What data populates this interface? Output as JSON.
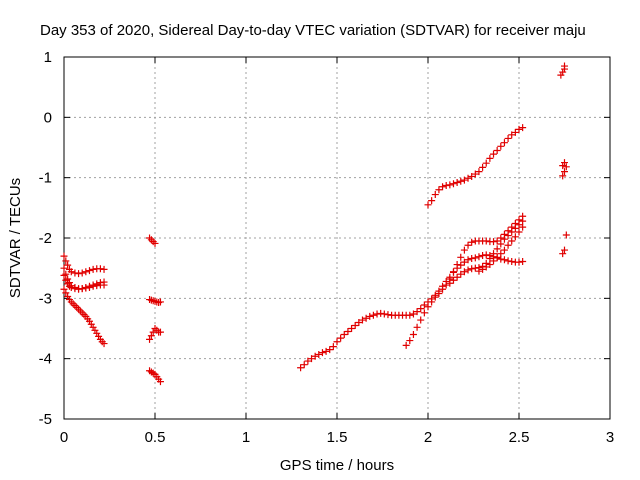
{
  "chart_data": {
    "type": "scatter",
    "title": "Day 353 of 2020, Sidereal Day-to-day VTEC variation (SDTVAR) for receiver maju",
    "xlabel": "GPS time / hours",
    "ylabel": "SDTVAR / TECUs",
    "xlim": [
      0,
      3
    ],
    "ylim": [
      -5,
      1
    ],
    "x_ticks": [
      0,
      0.5,
      1,
      1.5,
      2,
      2.5,
      3
    ],
    "x_tick_labels": [
      "0",
      "0.5",
      "1",
      "1.5",
      "2",
      "2.5",
      "3"
    ],
    "y_ticks": [
      -5,
      -4,
      -3,
      -2,
      -1,
      0,
      1
    ],
    "y_tick_labels": [
      "-5",
      "-4",
      "-3",
      "-2",
      "-1",
      "0",
      "1"
    ],
    "grid": true,
    "marker": "plus",
    "color": "#e00000",
    "series": [
      {
        "points": [
          [
            0.0,
            -2.3
          ],
          [
            0.01,
            -2.38
          ],
          [
            0.02,
            -2.45
          ],
          [
            0.03,
            -2.52
          ],
          [
            0.04,
            -2.56
          ],
          [
            0.06,
            -2.58
          ],
          [
            0.08,
            -2.59
          ],
          [
            0.1,
            -2.58
          ],
          [
            0.12,
            -2.56
          ],
          [
            0.14,
            -2.54
          ],
          [
            0.16,
            -2.52
          ],
          [
            0.18,
            -2.51
          ],
          [
            0.2,
            -2.51
          ],
          [
            0.22,
            -2.52
          ],
          [
            0.0,
            -2.5
          ],
          [
            0.01,
            -2.6
          ],
          [
            0.02,
            -2.68
          ],
          [
            0.03,
            -2.74
          ],
          [
            0.04,
            -2.79
          ],
          [
            0.06,
            -2.82
          ],
          [
            0.08,
            -2.84
          ],
          [
            0.1,
            -2.84
          ],
          [
            0.12,
            -2.83
          ],
          [
            0.14,
            -2.82
          ],
          [
            0.16,
            -2.8
          ],
          [
            0.18,
            -2.79
          ],
          [
            0.2,
            -2.78
          ],
          [
            0.22,
            -2.78
          ],
          [
            0.0,
            -2.62
          ],
          [
            0.01,
            -2.7
          ],
          [
            0.02,
            -2.76
          ],
          [
            0.03,
            -2.8
          ],
          [
            0.04,
            -2.82
          ],
          [
            0.06,
            -2.84
          ],
          [
            0.08,
            -2.85
          ],
          [
            0.1,
            -2.84
          ],
          [
            0.12,
            -2.82
          ],
          [
            0.14,
            -2.8
          ],
          [
            0.16,
            -2.78
          ],
          [
            0.18,
            -2.76
          ],
          [
            0.2,
            -2.74
          ],
          [
            0.22,
            -2.73
          ],
          [
            0.0,
            -2.85
          ],
          [
            0.01,
            -2.91
          ],
          [
            0.02,
            -2.97
          ],
          [
            0.03,
            -3.02
          ],
          [
            0.04,
            -3.06
          ],
          [
            0.05,
            -3.09
          ],
          [
            0.06,
            -3.12
          ],
          [
            0.07,
            -3.15
          ],
          [
            0.08,
            -3.18
          ],
          [
            0.09,
            -3.21
          ],
          [
            0.1,
            -3.24
          ],
          [
            0.11,
            -3.27
          ],
          [
            0.12,
            -3.3
          ],
          [
            0.13,
            -3.34
          ],
          [
            0.14,
            -3.38
          ],
          [
            0.15,
            -3.43
          ],
          [
            0.16,
            -3.48
          ],
          [
            0.17,
            -3.53
          ],
          [
            0.18,
            -3.58
          ],
          [
            0.19,
            -3.63
          ],
          [
            0.2,
            -3.68
          ],
          [
            0.21,
            -3.72
          ],
          [
            0.22,
            -3.75
          ],
          [
            0.47,
            -2.0
          ],
          [
            0.48,
            -2.03
          ],
          [
            0.49,
            -2.06
          ],
          [
            0.5,
            -2.09
          ],
          [
            0.47,
            -3.68
          ],
          [
            0.48,
            -3.62
          ],
          [
            0.49,
            -3.56
          ],
          [
            0.5,
            -3.5
          ],
          [
            0.51,
            -3.53
          ],
          [
            0.52,
            -3.56
          ],
          [
            0.53,
            -3.56
          ],
          [
            0.47,
            -3.02
          ],
          [
            0.48,
            -3.03
          ],
          [
            0.49,
            -3.04
          ],
          [
            0.5,
            -3.05
          ],
          [
            0.51,
            -3.06
          ],
          [
            0.52,
            -3.07
          ],
          [
            0.53,
            -3.06
          ],
          [
            0.47,
            -4.2
          ],
          [
            0.48,
            -4.22
          ],
          [
            0.49,
            -4.24
          ],
          [
            0.5,
            -4.26
          ],
          [
            0.51,
            -4.3
          ],
          [
            0.52,
            -4.34
          ],
          [
            0.53,
            -4.38
          ],
          [
            1.3,
            -4.15
          ],
          [
            1.32,
            -4.1
          ],
          [
            1.34,
            -4.04
          ],
          [
            1.36,
            -4.0
          ],
          [
            1.38,
            -3.96
          ],
          [
            1.4,
            -3.93
          ],
          [
            1.42,
            -3.9
          ],
          [
            1.44,
            -3.88
          ],
          [
            1.46,
            -3.85
          ],
          [
            1.48,
            -3.8
          ],
          [
            1.5,
            -3.72
          ],
          [
            1.52,
            -3.66
          ],
          [
            1.54,
            -3.6
          ],
          [
            1.56,
            -3.55
          ],
          [
            1.58,
            -3.5
          ],
          [
            1.6,
            -3.45
          ],
          [
            1.62,
            -3.4
          ],
          [
            1.64,
            -3.36
          ],
          [
            1.66,
            -3.33
          ],
          [
            1.68,
            -3.3
          ],
          [
            1.7,
            -3.28
          ],
          [
            1.72,
            -3.26
          ],
          [
            1.74,
            -3.25
          ],
          [
            1.76,
            -3.26
          ],
          [
            1.78,
            -3.27
          ],
          [
            1.8,
            -3.28
          ],
          [
            1.82,
            -3.28
          ],
          [
            1.84,
            -3.28
          ],
          [
            1.86,
            -3.28
          ],
          [
            1.88,
            -3.28
          ],
          [
            1.9,
            -3.28
          ],
          [
            1.92,
            -3.26
          ],
          [
            1.94,
            -3.22
          ],
          [
            1.96,
            -3.17
          ],
          [
            1.98,
            -3.11
          ],
          [
            2.0,
            -3.06
          ],
          [
            2.02,
            -3.01
          ],
          [
            2.04,
            -2.95
          ],
          [
            2.06,
            -2.88
          ],
          [
            2.08,
            -2.8
          ],
          [
            2.1,
            -2.72
          ],
          [
            2.12,
            -2.65
          ],
          [
            2.14,
            -2.57
          ],
          [
            2.16,
            -2.5
          ],
          [
            2.18,
            -2.45
          ],
          [
            2.2,
            -2.4
          ],
          [
            2.22,
            -2.36
          ],
          [
            2.24,
            -2.34
          ],
          [
            2.26,
            -2.33
          ],
          [
            2.28,
            -2.31
          ],
          [
            2.3,
            -2.29
          ],
          [
            2.32,
            -2.28
          ],
          [
            2.34,
            -2.29
          ],
          [
            2.36,
            -2.31
          ],
          [
            2.38,
            -2.33
          ],
          [
            2.4,
            -2.35
          ],
          [
            2.42,
            -2.36
          ],
          [
            2.44,
            -2.38
          ],
          [
            2.46,
            -2.39
          ],
          [
            2.48,
            -2.4
          ],
          [
            2.5,
            -2.4
          ],
          [
            2.52,
            -2.39
          ],
          [
            1.88,
            -3.78
          ],
          [
            1.9,
            -3.7
          ],
          [
            1.92,
            -3.6
          ],
          [
            1.94,
            -3.48
          ],
          [
            1.96,
            -3.36
          ],
          [
            1.98,
            -3.24
          ],
          [
            2.0,
            -3.14
          ],
          [
            2.02,
            -3.06
          ],
          [
            2.04,
            -2.98
          ],
          [
            2.06,
            -2.92
          ],
          [
            2.08,
            -2.85
          ],
          [
            2.1,
            -2.78
          ],
          [
            2.12,
            -2.68
          ],
          [
            2.14,
            -2.56
          ],
          [
            2.16,
            -2.44
          ],
          [
            2.18,
            -2.32
          ],
          [
            2.2,
            -2.2
          ],
          [
            2.22,
            -2.12
          ],
          [
            2.24,
            -2.07
          ],
          [
            2.26,
            -2.05
          ],
          [
            2.28,
            -2.05
          ],
          [
            2.3,
            -2.05
          ],
          [
            2.32,
            -2.05
          ],
          [
            2.34,
            -2.06
          ],
          [
            2.36,
            -2.06
          ],
          [
            2.38,
            -2.05
          ],
          [
            2.4,
            -2.0
          ],
          [
            2.42,
            -1.94
          ],
          [
            2.44,
            -1.88
          ],
          [
            2.46,
            -1.82
          ],
          [
            2.48,
            -1.76
          ],
          [
            2.5,
            -1.7
          ],
          [
            2.52,
            -1.64
          ],
          [
            2.12,
            -2.75
          ],
          [
            2.14,
            -2.7
          ],
          [
            2.16,
            -2.65
          ],
          [
            2.18,
            -2.6
          ],
          [
            2.2,
            -2.56
          ],
          [
            2.22,
            -2.53
          ],
          [
            2.24,
            -2.51
          ],
          [
            2.26,
            -2.5
          ],
          [
            2.28,
            -2.49
          ],
          [
            2.3,
            -2.47
          ],
          [
            2.32,
            -2.42
          ],
          [
            2.34,
            -2.34
          ],
          [
            2.36,
            -2.26
          ],
          [
            2.38,
            -2.18
          ],
          [
            2.4,
            -2.1
          ],
          [
            2.42,
            -2.02
          ],
          [
            2.44,
            -1.96
          ],
          [
            2.46,
            -1.9
          ],
          [
            2.48,
            -1.84
          ],
          [
            2.5,
            -1.78
          ],
          [
            2.52,
            -1.72
          ],
          [
            2.28,
            -2.55
          ],
          [
            2.3,
            -2.52
          ],
          [
            2.32,
            -2.48
          ],
          [
            2.34,
            -2.44
          ],
          [
            2.36,
            -2.38
          ],
          [
            2.38,
            -2.32
          ],
          [
            2.4,
            -2.26
          ],
          [
            2.42,
            -2.2
          ],
          [
            2.44,
            -2.12
          ],
          [
            2.46,
            -2.05
          ],
          [
            2.48,
            -1.98
          ],
          [
            2.5,
            -1.9
          ],
          [
            2.52,
            -1.82
          ],
          [
            2.0,
            -1.45
          ],
          [
            2.02,
            -1.38
          ],
          [
            2.04,
            -1.28
          ],
          [
            2.06,
            -1.2
          ],
          [
            2.08,
            -1.15
          ],
          [
            2.1,
            -1.13
          ],
          [
            2.12,
            -1.12
          ],
          [
            2.14,
            -1.1
          ],
          [
            2.16,
            -1.08
          ],
          [
            2.18,
            -1.06
          ],
          [
            2.2,
            -1.04
          ],
          [
            2.22,
            -1.01
          ],
          [
            2.24,
            -0.98
          ],
          [
            2.26,
            -0.94
          ],
          [
            2.28,
            -0.9
          ],
          [
            2.3,
            -0.83
          ],
          [
            2.32,
            -0.76
          ],
          [
            2.34,
            -0.68
          ],
          [
            2.36,
            -0.61
          ],
          [
            2.38,
            -0.55
          ],
          [
            2.4,
            -0.48
          ],
          [
            2.42,
            -0.42
          ],
          [
            2.44,
            -0.35
          ],
          [
            2.46,
            -0.29
          ],
          [
            2.48,
            -0.25
          ],
          [
            2.5,
            -0.2
          ],
          [
            2.52,
            -0.17
          ],
          [
            2.75,
            0.85
          ],
          [
            2.75,
            0.8
          ],
          [
            2.74,
            0.75
          ],
          [
            2.73,
            0.7
          ],
          [
            2.75,
            -0.75
          ],
          [
            2.74,
            -0.8
          ],
          [
            2.76,
            -0.82
          ],
          [
            2.75,
            -0.9
          ],
          [
            2.74,
            -0.97
          ],
          [
            2.76,
            -1.95
          ],
          [
            2.75,
            -2.2
          ],
          [
            2.74,
            -2.26
          ]
        ]
      }
    ]
  }
}
